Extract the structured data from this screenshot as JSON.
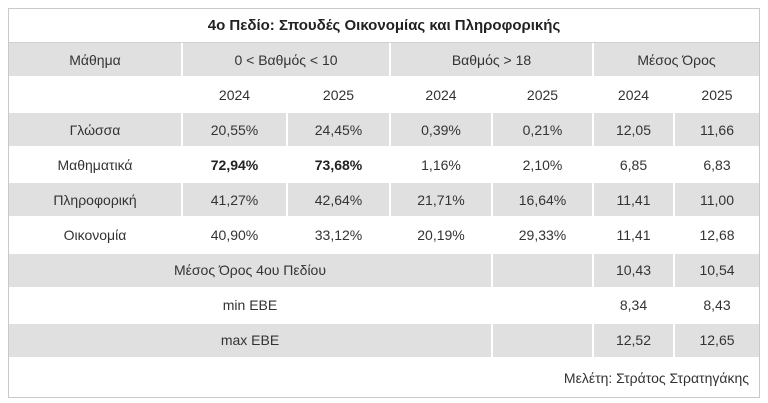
{
  "title": "4ο Πεδίο: Σπουδές Οικονομίας και Πληροφορικής",
  "headers": {
    "subject": "Μάθημα",
    "low_grade": "0 < Βαθμός < 10",
    "high_grade": "Βαθμός > 18",
    "average": "Μέσος Όρος"
  },
  "years": [
    "2024",
    "2025",
    "2024",
    "2025",
    "2024",
    "2025"
  ],
  "rows": [
    {
      "subject": "Γλώσσα",
      "values": [
        "20,55%",
        "24,45%",
        "0,39%",
        "0,21%",
        "12,05",
        "11,66"
      ]
    },
    {
      "subject": "Μαθηματικά",
      "values": [
        "72,94%",
        "73,68%",
        "1,16%",
        "2,10%",
        "6,85",
        "6,83"
      ]
    },
    {
      "subject": "Πληροφορική",
      "values": [
        "41,27%",
        "42,64%",
        "21,71%",
        "16,64%",
        "11,41",
        "11,00"
      ]
    },
    {
      "subject": "Οικονομία",
      "values": [
        "40,90%",
        "33,12%",
        "20,19%",
        "29,33%",
        "11,41",
        "12,68"
      ]
    }
  ],
  "summary": [
    {
      "label": "Μέσος Όρος 4ου Πεδίου",
      "values": [
        "10,43",
        "10,54"
      ]
    },
    {
      "label": "min ΕΒΕ",
      "values": [
        "8,34",
        "8,43"
      ]
    },
    {
      "label": "max ΕΒΕ",
      "values": [
        "12,52",
        "12,65"
      ]
    }
  ],
  "footer": "Μελέτη: Στράτος Στρατηγάκης",
  "colors": {
    "row_shade": "#e0e0e0",
    "text": "#333333",
    "border": "#c9c9c9"
  }
}
